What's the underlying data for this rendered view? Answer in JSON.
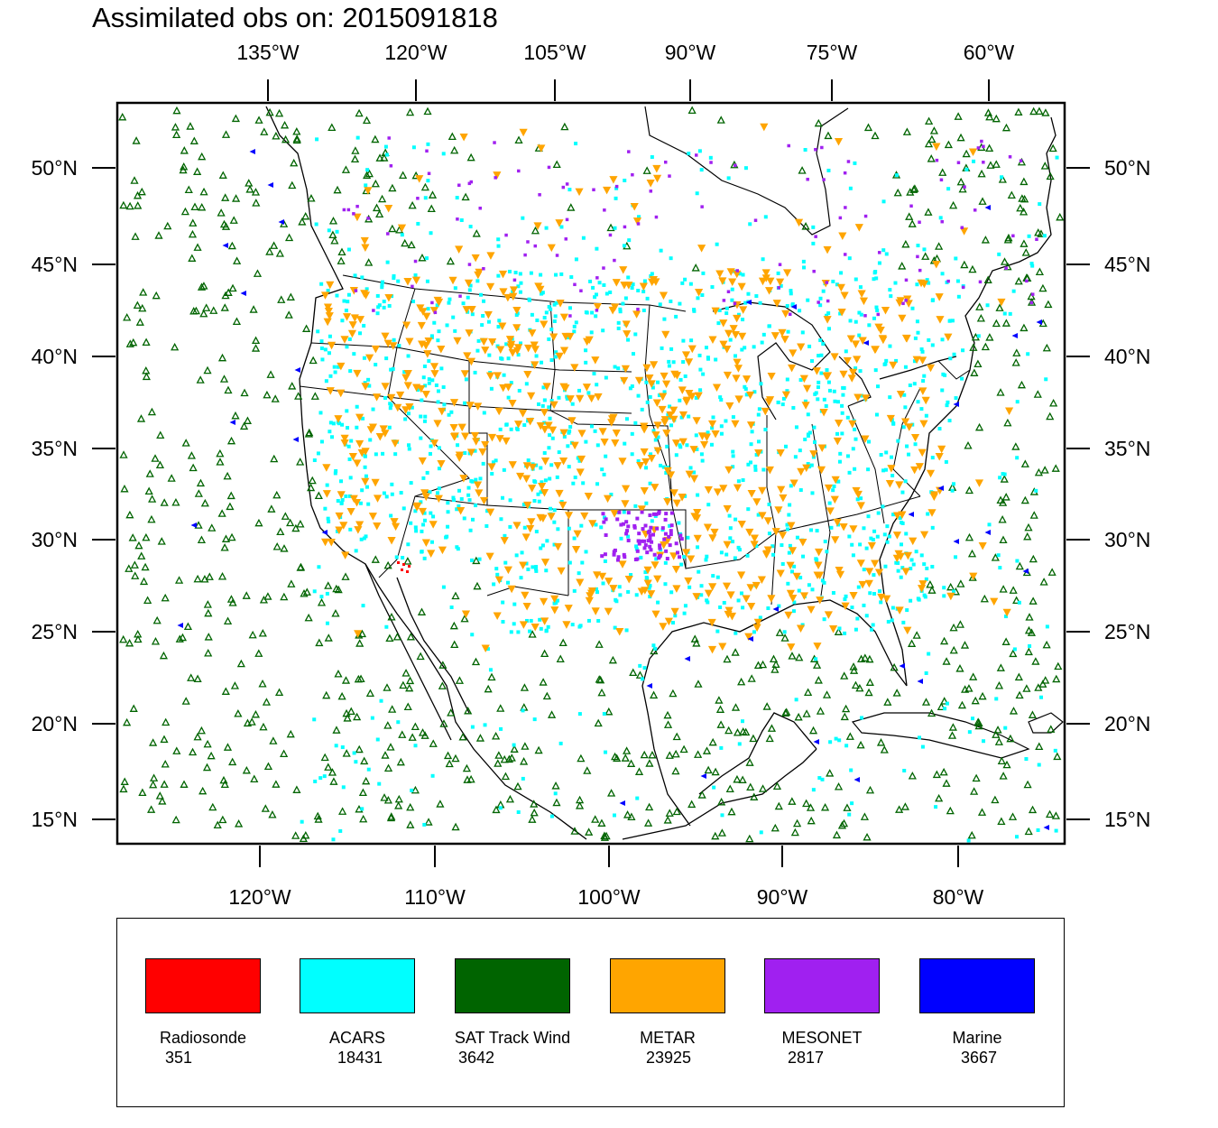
{
  "title": "Assimilated obs on: 2015091818",
  "axes": {
    "top_lon_labels": [
      "135°W",
      "120°W",
      "105°W",
      "90°W",
      "75°W",
      "60°W"
    ],
    "bottom_lon_labels": [
      "120°W",
      "110°W",
      "100°W",
      "90°W",
      "80°W"
    ],
    "left_lat_labels": [
      "50°N",
      "45°N",
      "40°N",
      "35°N",
      "30°N",
      "25°N",
      "20°N",
      "15°N"
    ],
    "right_lat_labels": [
      "50°N",
      "45°N",
      "40°N",
      "35°N",
      "30°N",
      "25°N",
      "20°N",
      "15°N"
    ]
  },
  "legend": [
    {
      "label": "Radiosonde",
      "count": "351",
      "color": "#ff0000"
    },
    {
      "label": "ACARS",
      "count": "18431",
      "color": "#00ffff"
    },
    {
      "label": "SAT Track Wind",
      "count": "3642",
      "color": "#006400"
    },
    {
      "label": "METAR",
      "count": "23925",
      "color": "#ffa500"
    },
    {
      "label": "MESONET",
      "count": "2817",
      "color": "#a020f0"
    },
    {
      "label": "Marine",
      "count": "3667",
      "color": "#0000ff"
    }
  ],
  "colors": {
    "acars": "#00ffff",
    "sat": "#006400",
    "metar": "#ffa500",
    "mesonet": "#a020f0",
    "marine": "#0000ff",
    "radiosonde": "#ff0000"
  }
}
